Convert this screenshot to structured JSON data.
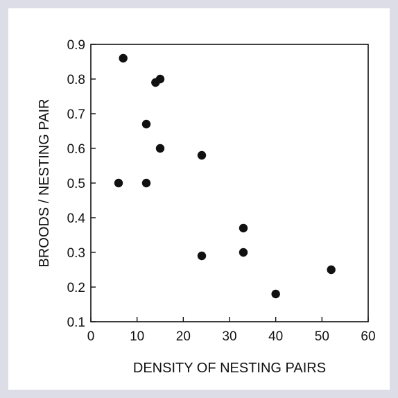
{
  "chart_data": {
    "type": "scatter",
    "title": "",
    "xlabel": "DENSITY OF NESTING PAIRS",
    "ylabel": "BROODS / NESTING PAIR",
    "xlim": [
      0,
      60
    ],
    "ylim": [
      0.1,
      0.9
    ],
    "x_ticks": [
      "0",
      "10",
      "20",
      "30",
      "40",
      "50",
      "60"
    ],
    "y_ticks": [
      "0.1",
      "0.2",
      "0.3",
      "0.4",
      "0.5",
      "0.6",
      "0.7",
      "0.8",
      "0.9"
    ],
    "grid": false,
    "marker_color": "#111111",
    "points": [
      {
        "x": 7,
        "y": 0.86
      },
      {
        "x": 14,
        "y": 0.79
      },
      {
        "x": 15,
        "y": 0.8
      },
      {
        "x": 12,
        "y": 0.67
      },
      {
        "x": 15,
        "y": 0.6
      },
      {
        "x": 6,
        "y": 0.5
      },
      {
        "x": 12,
        "y": 0.5
      },
      {
        "x": 24,
        "y": 0.58
      },
      {
        "x": 24,
        "y": 0.29
      },
      {
        "x": 33,
        "y": 0.37
      },
      {
        "x": 33,
        "y": 0.3
      },
      {
        "x": 40,
        "y": 0.18
      },
      {
        "x": 52,
        "y": 0.25
      }
    ]
  }
}
